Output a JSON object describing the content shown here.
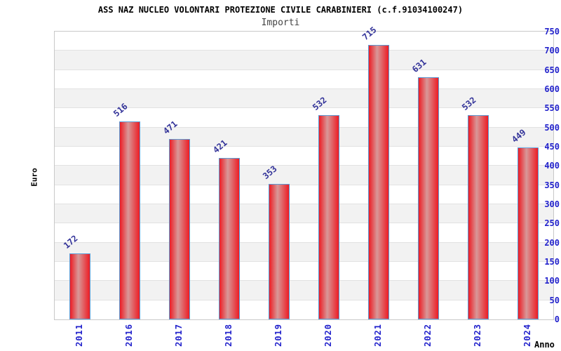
{
  "chart_data": {
    "type": "bar",
    "title": "ASS NAZ NUCLEO VOLONTARI PROTEZIONE CIVILE CARABINIERI (c.f.91034100247)",
    "subtitle": "Importi",
    "categories": [
      "2011",
      "2016",
      "2017",
      "2018",
      "2019",
      "2020",
      "2021",
      "2022",
      "2023",
      "2024"
    ],
    "values": [
      172,
      516,
      471,
      421,
      353,
      532,
      715,
      631,
      532,
      449
    ],
    "xlabel": "Anno",
    "ylabel": "Euro",
    "ylim": [
      0,
      750
    ],
    "ytick_step": 50,
    "yticks": [
      0,
      50,
      100,
      150,
      200,
      250,
      300,
      350,
      400,
      450,
      500,
      550,
      600,
      650,
      700,
      750
    ],
    "grid": "horizontal alternating white/gray bands every 50 units",
    "legend": "none",
    "bar_label_rotation_deg": -40,
    "x_tick_rotation_deg": -90,
    "colors": {
      "title": "#000000",
      "subtitle": "#444444",
      "axis_tick_label": "#2222cc",
      "value_label": "#333399",
      "axis_title": "#000000",
      "bar_fill": "#ed1c24",
      "bar_fill_light": "#d89898",
      "bar_border": "#5b9bd5",
      "band": "#f2f2f2",
      "grid_line": "#e2e2e2",
      "plot_border": "#c8c8c8",
      "background": "#ffffff"
    }
  }
}
